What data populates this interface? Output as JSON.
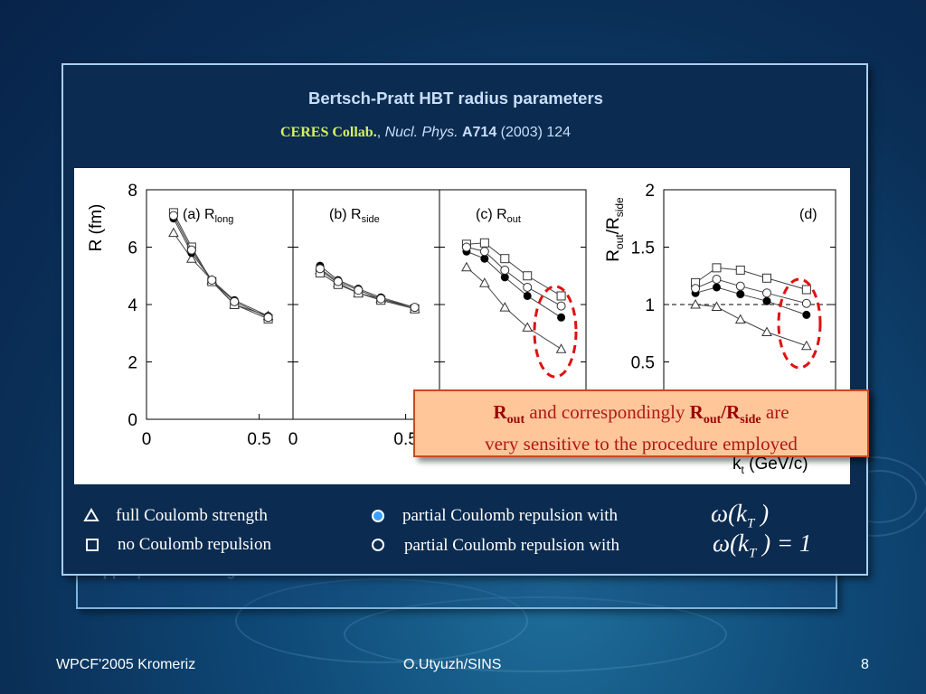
{
  "slide": {
    "title": "Bertsch-Pratt HBT radius parameters",
    "collab": "CERES Collab.",
    "journal": "Nucl. Phys.",
    "volume": "A714",
    "year_page": "(2003) 124",
    "back_text": "appropriate scaling of the Coulomb correction.",
    "callout": {
      "r_base": "R",
      "r_sub": "out",
      "middle": " and correspondingly ",
      "r2_base": "R",
      "r2_sub": "out",
      "slash": "/R",
      "r3_sub": "side",
      "end": " are",
      "line2": "very sensitive to the procedure employed"
    },
    "legend": {
      "full": "full Coulomb strength",
      "none": "no Coulomb repulsion",
      "partial1": "partial Coulomb repulsion with",
      "partial2": "partial Coulomb repulsion with",
      "omega1": "ω(k",
      "omega1_sub": "T",
      "omega1_end": " )",
      "omega2": "ω(k",
      "omega2_sub": "T",
      "omega2_end": " ) = 1"
    },
    "footer": {
      "left": "WPCF'2005 Kromeriz",
      "center": "O.Utyuzh/SINS",
      "right": "8"
    },
    "colors": {
      "title": "#c9defa",
      "collab": "#d6f060",
      "callout_bg": "#ffc69a",
      "highlight_ellipse": "#e01010"
    }
  },
  "chart_data": [
    {
      "type": "line",
      "panel": "(a) R_long",
      "panel_label": "(a) R",
      "panel_sub": "long",
      "ylabel": "R (fm)",
      "ylim": [
        0,
        8
      ],
      "yticks": [
        "0",
        "2",
        "4",
        "6",
        "8"
      ],
      "xlim": [
        0,
        0.65
      ],
      "xticks": [
        "0",
        "0.5"
      ],
      "series": [
        {
          "marker": "triangle-open",
          "x": [
            0.12,
            0.2,
            0.29,
            0.39,
            0.54
          ],
          "y": [
            6.5,
            5.6,
            4.85,
            4.0,
            3.6
          ]
        },
        {
          "marker": "square-open",
          "x": [
            0.12,
            0.2,
            0.29,
            0.39,
            0.54
          ],
          "y": [
            7.2,
            6.0,
            4.8,
            4.0,
            3.5
          ]
        },
        {
          "marker": "circle-filled",
          "x": [
            0.12,
            0.2,
            0.29,
            0.39,
            0.54
          ],
          "y": [
            7.0,
            5.8,
            4.85,
            4.15,
            3.6
          ]
        },
        {
          "marker": "circle-open",
          "x": [
            0.12,
            0.2,
            0.29,
            0.39,
            0.54
          ],
          "y": [
            7.1,
            5.9,
            4.85,
            4.1,
            3.55
          ]
        }
      ]
    },
    {
      "type": "line",
      "panel": "(b) R_side",
      "panel_label": "(b) R",
      "panel_sub": "side",
      "ylim": [
        0,
        8
      ],
      "xlim": [
        0,
        0.65
      ],
      "xticks": [
        "0",
        "0.5"
      ],
      "series": [
        {
          "marker": "triangle-open",
          "x": [
            0.12,
            0.2,
            0.29,
            0.39,
            0.54
          ],
          "y": [
            5.2,
            4.75,
            4.4,
            4.2,
            3.85
          ]
        },
        {
          "marker": "square-open",
          "x": [
            0.12,
            0.2,
            0.29,
            0.39,
            0.54
          ],
          "y": [
            5.1,
            4.7,
            4.4,
            4.15,
            3.85
          ]
        },
        {
          "marker": "circle-filled",
          "x": [
            0.12,
            0.2,
            0.29,
            0.39,
            0.54
          ],
          "y": [
            5.35,
            4.85,
            4.55,
            4.25,
            3.9
          ]
        },
        {
          "marker": "circle-open",
          "x": [
            0.12,
            0.2,
            0.29,
            0.39,
            0.54
          ],
          "y": [
            5.25,
            4.8,
            4.5,
            4.2,
            3.9
          ]
        }
      ]
    },
    {
      "type": "line",
      "panel": "(c) R_out",
      "panel_label": "(c) R",
      "panel_sub": "out",
      "ylim": [
        0,
        8
      ],
      "xlim": [
        0,
        0.65
      ],
      "series": [
        {
          "marker": "triangle-open",
          "x": [
            0.12,
            0.2,
            0.29,
            0.39,
            0.54
          ],
          "y": [
            5.3,
            4.75,
            3.9,
            3.2,
            2.45
          ]
        },
        {
          "marker": "square-open",
          "x": [
            0.12,
            0.2,
            0.29,
            0.39,
            0.54
          ],
          "y": [
            6.1,
            6.15,
            5.6,
            5.0,
            4.3
          ]
        },
        {
          "marker": "circle-filled",
          "x": [
            0.12,
            0.2,
            0.29,
            0.39,
            0.54
          ],
          "y": [
            5.85,
            5.6,
            4.95,
            4.3,
            3.55
          ]
        },
        {
          "marker": "circle-open",
          "x": [
            0.12,
            0.2,
            0.29,
            0.39,
            0.54
          ],
          "y": [
            6.0,
            5.85,
            5.2,
            4.6,
            3.95
          ]
        }
      ]
    },
    {
      "type": "line",
      "panel": "(d) R_out/R_side",
      "panel_label": "(d)",
      "ylabel_base": "R",
      "ylabel_sub1": "out",
      "ylabel_mid": "/R",
      "ylabel_sub2": "side",
      "ylim": [
        0,
        2
      ],
      "yticks": [
        "0.5",
        "1",
        "1.5",
        "2"
      ],
      "dashed_ref": 1,
      "xlim": [
        0,
        0.65
      ],
      "xlabel": "k_t (GeV/c)",
      "xlabel_base": "k",
      "xlabel_sub": "t",
      "xlabel_end": " (GeV/c)",
      "series": [
        {
          "marker": "triangle-open",
          "x": [
            0.12,
            0.2,
            0.29,
            0.39,
            0.54
          ],
          "y": [
            1.0,
            0.98,
            0.87,
            0.76,
            0.64
          ]
        },
        {
          "marker": "square-open",
          "x": [
            0.12,
            0.2,
            0.29,
            0.39,
            0.54
          ],
          "y": [
            1.19,
            1.32,
            1.3,
            1.23,
            1.13
          ]
        },
        {
          "marker": "circle-filled",
          "x": [
            0.12,
            0.2,
            0.29,
            0.39,
            0.54
          ],
          "y": [
            1.1,
            1.15,
            1.09,
            1.03,
            0.91
          ]
        },
        {
          "marker": "circle-open",
          "x": [
            0.12,
            0.2,
            0.29,
            0.39,
            0.54
          ],
          "y": [
            1.14,
            1.22,
            1.16,
            1.1,
            1.01
          ]
        }
      ]
    }
  ]
}
